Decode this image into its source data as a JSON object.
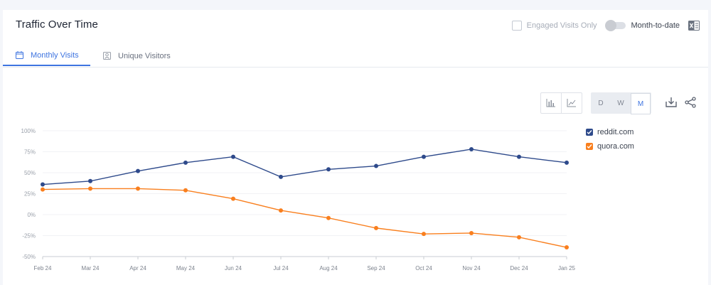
{
  "header": {
    "title": "Traffic Over Time",
    "engaged_label": "Engaged Visits Only",
    "mtd_label": "Month-to-date"
  },
  "tabs": [
    {
      "label": "Monthly Visits",
      "icon": "calendar-icon",
      "active": true
    },
    {
      "label": "Unique Visitors",
      "icon": "person-icon",
      "active": false
    }
  ],
  "toolbar": {
    "period_buttons": [
      "D",
      "W",
      "M"
    ],
    "selected_period": "M"
  },
  "colors": {
    "accent": "#3e74e0",
    "reddit": "#2e4a8b",
    "quora": "#f97f1e"
  },
  "chart_data": {
    "type": "line",
    "x": [
      "Feb 24",
      "Mar 24",
      "Apr 24",
      "May 24",
      "Jun 24",
      "Jul 24",
      "Aug 24",
      "Sep 24",
      "Oct 24",
      "Nov 24",
      "Dec 24",
      "Jan 25"
    ],
    "y_ticks": [
      "100%",
      "75%",
      "50%",
      "25%",
      "0%",
      "-25%",
      "-50%"
    ],
    "ylim": [
      -50,
      100
    ],
    "series": [
      {
        "name": "reddit.com",
        "color": "#2e4a8b",
        "values": [
          36,
          40,
          52,
          62,
          69,
          45,
          54,
          58,
          69,
          78,
          69,
          62
        ]
      },
      {
        "name": "quora.com",
        "color": "#f97f1e",
        "values": [
          30,
          31,
          31,
          29,
          19,
          5,
          -4,
          -16,
          -23,
          -22,
          -27,
          -39
        ]
      }
    ],
    "legend_position": "right",
    "grid": true
  }
}
